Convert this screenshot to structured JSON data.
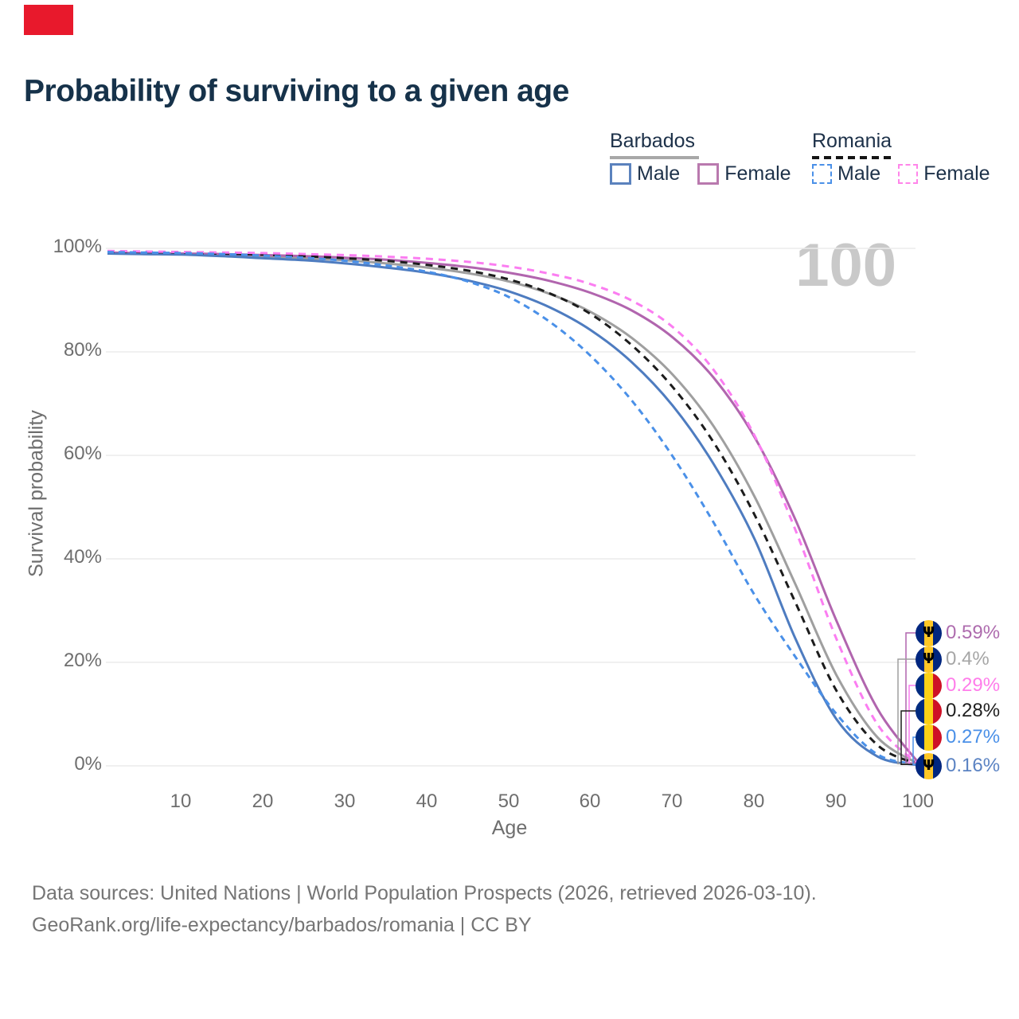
{
  "banner": {
    "color": "#e8192c"
  },
  "title": "Probability of surviving to a given age",
  "legend": {
    "groups": [
      {
        "label": "Barbados",
        "line_style": "solid",
        "line_color": "#a8a8a8",
        "items": [
          {
            "label": "Male",
            "swatch_color": "#5b82bd",
            "swatch_style": "solid"
          },
          {
            "label": "Female",
            "swatch_color": "#b979ae",
            "swatch_style": "solid"
          }
        ]
      },
      {
        "label": "Romania",
        "line_style": "dashed",
        "line_color": "#141414",
        "items": [
          {
            "label": "Male",
            "swatch_color": "#4a90e8",
            "swatch_style": "dashed"
          },
          {
            "label": "Female",
            "swatch_color": "#ff85ea",
            "swatch_style": "dashed"
          }
        ]
      }
    ]
  },
  "watermark": "100",
  "chart_data": {
    "type": "line",
    "title": "Probability of surviving to a given age",
    "xlabel": "Age",
    "ylabel": "Survival probability",
    "xlim": [
      1,
      100
    ],
    "ylim": [
      0,
      100
    ],
    "grid": "horizontal",
    "legend_position": "top-right",
    "y_tick_labels": [
      "100%",
      "80%",
      "60%",
      "40%",
      "20%",
      "0%"
    ],
    "y_tick_values": [
      100,
      80,
      60,
      40,
      20,
      0
    ],
    "x_tick_labels": [
      "10",
      "20",
      "30",
      "40",
      "50",
      "60",
      "70",
      "80",
      "90",
      "100"
    ],
    "x": [
      1,
      5,
      10,
      15,
      20,
      25,
      30,
      35,
      40,
      45,
      50,
      55,
      60,
      65,
      70,
      75,
      80,
      85,
      90,
      95,
      100
    ],
    "series": [
      {
        "name": "Barbados Female",
        "country": "Barbados",
        "sex": "Female",
        "color": "#b165ae",
        "style": "solid",
        "values": [
          99.2,
          99.1,
          99.0,
          98.9,
          98.7,
          98.5,
          98.2,
          97.8,
          97.2,
          96.4,
          95.3,
          93.7,
          91.4,
          88.0,
          82.8,
          75.0,
          63.5,
          47.5,
          28.0,
          11.0,
          0.59
        ]
      },
      {
        "name": "Barbados Both sexes",
        "country": "Barbados",
        "sex": "Both sexes",
        "color": "#9f9f9f",
        "style": "solid",
        "values": [
          99.1,
          99.0,
          98.9,
          98.7,
          98.4,
          98.1,
          97.7,
          97.1,
          96.3,
          95.2,
          93.6,
          91.2,
          87.7,
          82.7,
          75.6,
          65.6,
          52.0,
          35.0,
          17.5,
          5.5,
          0.4
        ]
      },
      {
        "name": "Barbados Male",
        "country": "Barbados",
        "sex": "Male",
        "color": "#4e7cc0",
        "style": "solid",
        "values": [
          99.0,
          98.9,
          98.8,
          98.5,
          98.1,
          97.7,
          97.1,
          96.3,
          95.3,
          93.8,
          91.7,
          88.6,
          84.2,
          78.0,
          69.6,
          58.3,
          43.8,
          24.5,
          9.0,
          1.8,
          0.16
        ]
      },
      {
        "name": "Romania Female",
        "country": "Romania",
        "sex": "Female",
        "color": "#fb7df1",
        "style": "dashed",
        "values": [
          99.5,
          99.4,
          99.3,
          99.2,
          99.1,
          98.9,
          98.7,
          98.4,
          98.0,
          97.4,
          96.5,
          95.1,
          93.1,
          89.9,
          84.8,
          76.5,
          63.8,
          45.5,
          24.5,
          8.0,
          0.29
        ]
      },
      {
        "name": "Romania Both sexes",
        "country": "Romania",
        "sex": "Both sexes",
        "color": "#1c1c1c",
        "style": "dashed",
        "values": [
          99.4,
          99.3,
          99.2,
          99.0,
          98.8,
          98.5,
          98.1,
          97.6,
          96.8,
          95.7,
          94.0,
          91.3,
          87.3,
          81.3,
          73.2,
          62.5,
          48.5,
          31.5,
          14.5,
          4.0,
          0.28
        ]
      },
      {
        "name": "Romania Male",
        "country": "Romania",
        "sex": "Male",
        "color": "#4a90e8",
        "style": "dashed",
        "values": [
          99.3,
          99.2,
          99.1,
          98.9,
          98.6,
          98.2,
          97.6,
          96.7,
          95.5,
          93.6,
          90.6,
          85.8,
          79.2,
          70.6,
          59.8,
          47.0,
          33.0,
          21.0,
          10.0,
          2.2,
          0.27
        ]
      }
    ]
  },
  "end_labels": [
    {
      "value": "0.59%",
      "color": "#ae6cae",
      "flag": "barbados",
      "series": 0
    },
    {
      "value": "0.4%",
      "color": "#a6a6a6",
      "flag": "barbados",
      "series": 1
    },
    {
      "value": "0.29%",
      "color": "#ff7dea",
      "flag": "romania",
      "series": 3
    },
    {
      "value": "0.28%",
      "color": "#1f1f1f",
      "flag": "romania",
      "series": 4
    },
    {
      "value": "0.27%",
      "color": "#4a90e8",
      "flag": "romania",
      "series": 5
    },
    {
      "value": "0.16%",
      "color": "#5b83c3",
      "flag": "barbados",
      "series": 2
    }
  ],
  "footer": {
    "line1": "Data sources: United Nations | World Population Prospects (2026, retrieved 2026-03-10).",
    "line2": "GeoRank.org/life-expectancy/barbados/romania | CC BY"
  },
  "colors": {
    "title_text": "#16324a",
    "axis_text": "#6e6e6e",
    "grid": "#ececec",
    "watermark": "#c9c9c9",
    "footer_text": "#757575",
    "banner": "#e8192c"
  }
}
